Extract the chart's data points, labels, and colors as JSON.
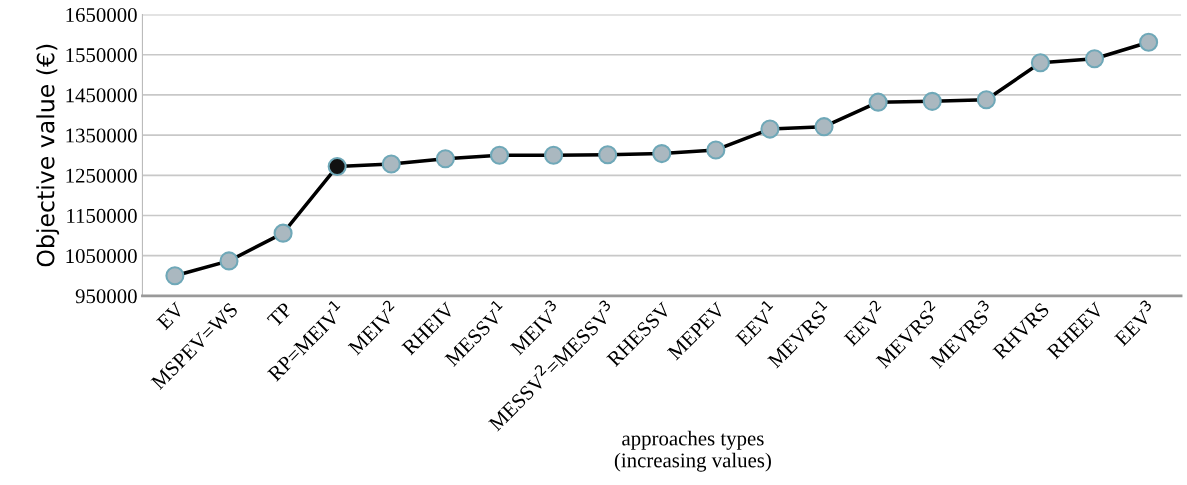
{
  "chart_data": {
    "type": "line",
    "xlabel": "approaches types\n(increasing values)",
    "ylabel": "Objective value (€)",
    "categories": [
      "EV",
      "MSPEV=WS",
      "TP",
      "RP=MEIV$^{1}$",
      "MEIV$^{2}$",
      "RHEIV",
      "MESSV$^{1}$",
      "MEIV$^{3}$",
      "MESSV$^{2}$=MESSV$^{3}$",
      "RHESSV",
      "MEPEV",
      "EEV$^{1}$",
      "MEVRS$^{1}$",
      "EEV$^{2}$",
      "MEVRS$^{2}$",
      "MEVRS$^{3}$",
      "RHVRS",
      "RHEEV",
      "EEV$^{3}$"
    ],
    "series": [
      {
        "color": "#000000",
        "colors": [
          "#aab8c0",
          "#aab8c0",
          "#aab8c0",
          "#111111",
          "#aab8c0",
          "#aab8c0",
          "#aab8c0",
          "#aab8c0",
          "#aab8c0",
          "#aab8c0",
          "#aab8c0",
          "#aab8c0",
          "#aab8c0",
          "#aab8c0",
          "#aab8c0",
          "#aab8c0",
          "#aab8c0",
          "#aab8c0",
          "#aab8c0"
        ],
        "values": [
          1000000,
          1037000,
          1106000,
          1272000,
          1278000,
          1291000,
          1300000,
          1300000,
          1301000,
          1304000,
          1313000,
          1365000,
          1371000,
          1432000,
          1434000,
          1438000,
          1530000,
          1540000,
          1581000
        ]
      }
    ],
    "ylim": [
      950000,
      1650000
    ],
    "yticks": [
      950000,
      1050000,
      1150000,
      1250000,
      1350000,
      1450000,
      1550000,
      1650000
    ],
    "grid": "y",
    "marker": "circle",
    "line_style": "solid"
  }
}
